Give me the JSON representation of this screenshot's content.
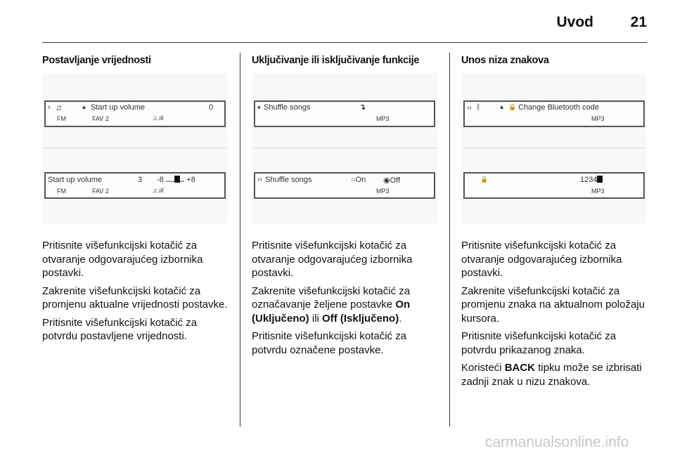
{
  "header": {
    "title": "Uvod",
    "page_number": "21"
  },
  "columns": [
    {
      "heading": "Postavljanje vrijednosti",
      "display_top": {
        "arrow": "›",
        "note_icon": "♫",
        "up_icon": "▴",
        "label": "Start up volume",
        "value": "0",
        "source": "FM",
        "preset": "FAV 2",
        "status_icons": "♫.ıll"
      },
      "display_bottom": {
        "label": "Start up volume",
        "value": "3",
        "min": "-8",
        "scale": "....",
        "scale_after": "..",
        "max": "+8",
        "source": "FM",
        "preset": "FAV 2",
        "status_icons": "♫.ıll"
      },
      "paragraphs": [
        "Pritisnite višefunkcijski kotačić za otvaranje odgovarajućeg izbornika postavki.",
        "Zakrenite višefunkcijski kotačić za promjenu aktualne vrijednosti postavke.",
        "Pritisnite višefunkcijski kotačić za potvrdu postavljene vrijednosti."
      ]
    },
    {
      "heading": "Uključivanje ili isključivanje funkcije",
      "display_top": {
        "arrow": "▾",
        "label": "Shuffle songs",
        "shuffle_icon": "↴",
        "source": "MP3"
      },
      "display_bottom": {
        "arrow": "››",
        "label": "Shuffle songs",
        "option_on": "On",
        "option_off": "Off",
        "selected": "Off",
        "source": "MP3"
      },
      "paragraphs": [
        "Pritisnite višefunkcijski kotačić za otvaranje odgovarajućeg izbornika postavki."
      ],
      "para2_prefix": "Zakrenite višefunkcijski kotačić za označavanje željene postavke ",
      "para2_on": "On (Uključeno)",
      "para2_mid": " ili ",
      "para2_off": "Off (Isključeno)",
      "para2_suffix": ".",
      "para3": "Pritisnite višefunkcijski kotačić za potvrdu označene postavke."
    },
    {
      "heading": "Unos niza znakova",
      "display_top": {
        "arrow": "››",
        "bluetooth_icon": "ᛒ",
        "up_icon": "▴",
        "lock_icon": "🔒",
        "label": "Change Bluetooth code",
        "source": "MP3"
      },
      "display_bottom": {
        "lock_icon": "🔒",
        "value": "1234",
        "source": "MP3"
      },
      "paragraphs": [
        "Pritisnite višefunkcijski kotačić za otvaranje odgovarajućeg izbornika postavki.",
        "Zakrenite višefunkcijski kotačić za promjenu znaka na aktualnom položaju kursora.",
        "Pritisnite višefunkcijski kotačić za potvrdu prikazanog znaka."
      ],
      "para4_prefix": "Koristeći ",
      "para4_bold": "BACK",
      "para4_suffix": " tipku može se izbrisati zadnji znak u nizu znakova."
    }
  ],
  "watermark": "carmanualsonline.info"
}
